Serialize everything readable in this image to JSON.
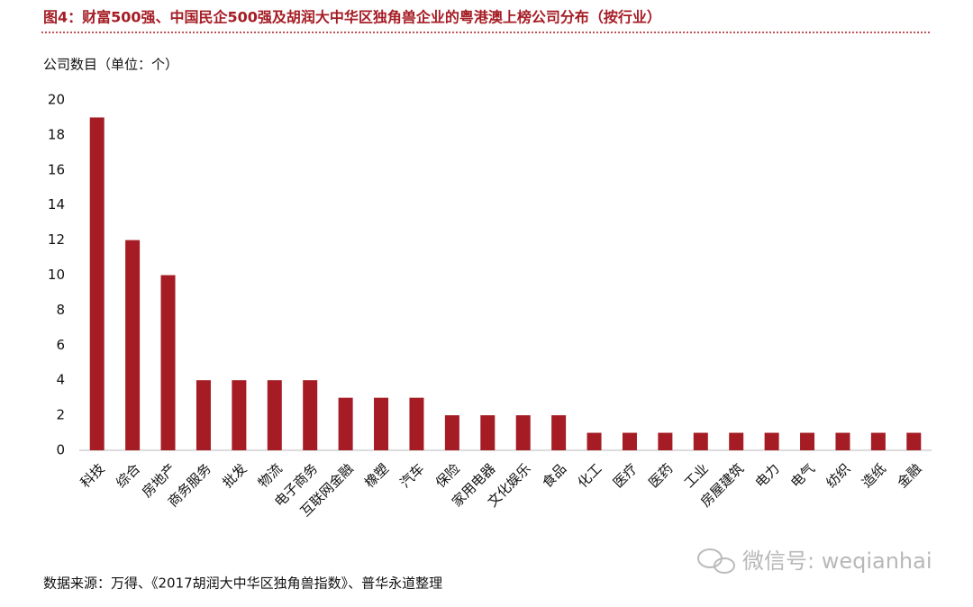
{
  "chart_data": {
    "type": "bar",
    "title": "图4：财富500强、中国民企500强及胡润大中华区独角兽企业的粤港澳上榜公司分布（按行业）",
    "y_label": "公司数目（单位：个）",
    "categories": [
      "科技",
      "综合",
      "房地产",
      "商务服务",
      "批发",
      "物流",
      "电子商务",
      "互联网金融",
      "橡塑",
      "汽车",
      "保险",
      "家用电器",
      "文化娱乐",
      "食品",
      "化工",
      "医疗",
      "医药",
      "工业",
      "房屋建筑",
      "电力",
      "电气",
      "纺织",
      "造纸",
      "金融"
    ],
    "values": [
      19,
      12,
      10,
      4,
      4,
      4,
      4,
      3,
      3,
      3,
      2,
      2,
      2,
      2,
      1,
      1,
      1,
      1,
      1,
      1,
      1,
      1,
      1,
      1
    ],
    "color": "#a51c24",
    "ylim": [
      0,
      20
    ],
    "yticks": [
      0,
      2,
      4,
      6,
      8,
      10,
      12,
      14,
      16,
      18,
      20
    ],
    "grid": false,
    "source": "数据来源：万得、《2017胡润大中华区独角兽指数》、普华永道整理",
    "watermark": "微信号: weqianhai"
  }
}
